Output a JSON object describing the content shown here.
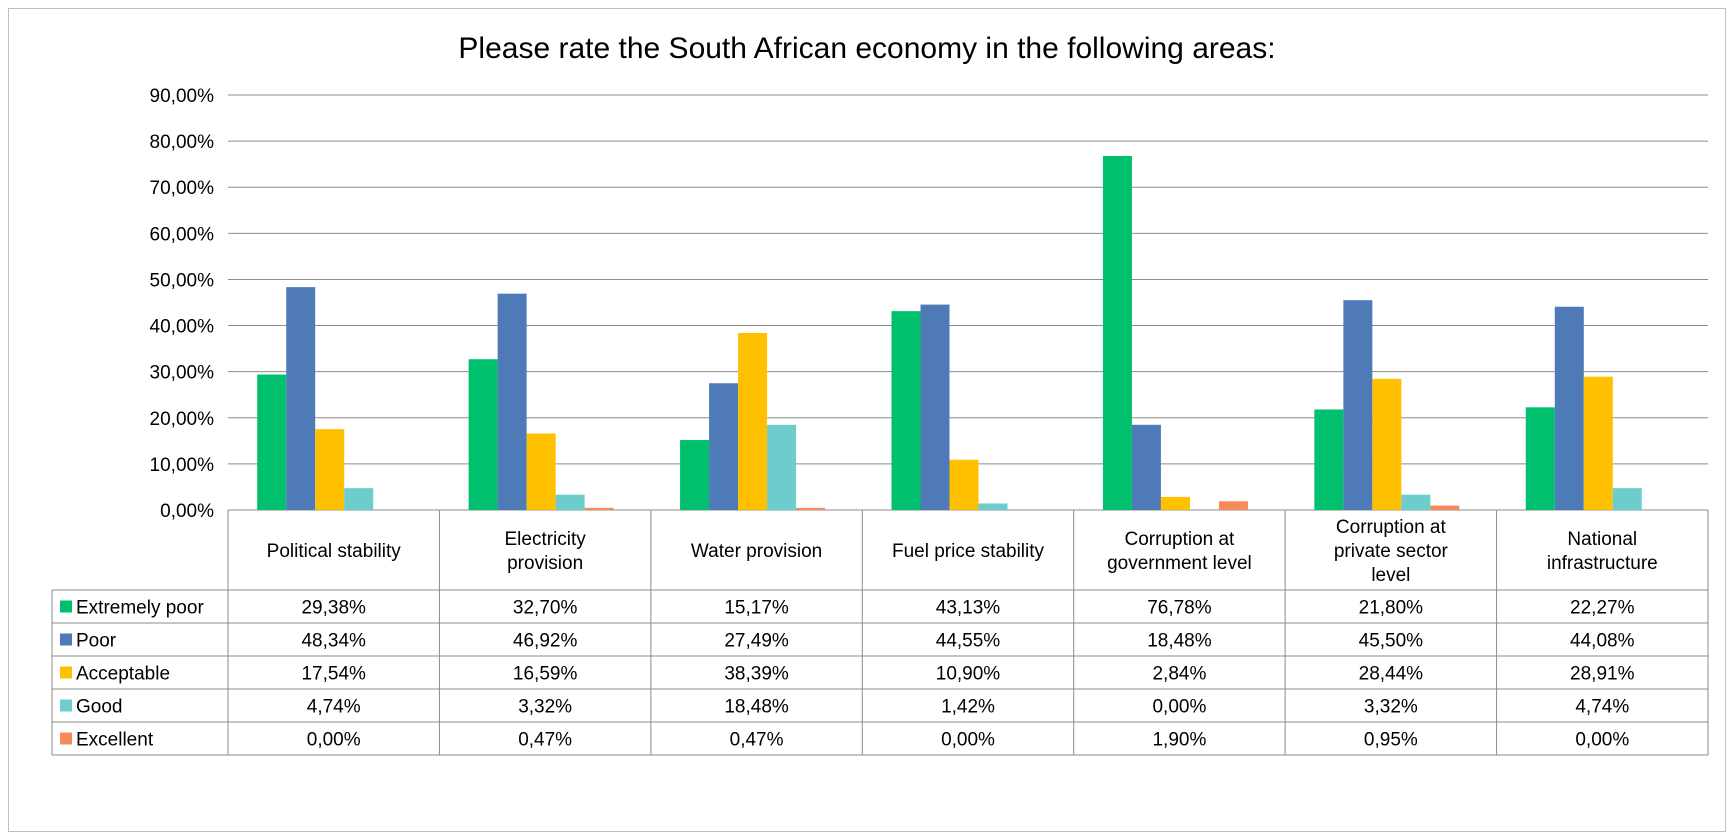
{
  "chart_data": {
    "type": "bar",
    "title": "Please rate the South African economy in the following areas:",
    "categories": [
      [
        "Political stability"
      ],
      [
        "Electricity",
        "provision"
      ],
      [
        "Water provision"
      ],
      [
        "Fuel price stability"
      ],
      [
        "Corruption at",
        "government level"
      ],
      [
        "Corruption at",
        "private sector",
        "level"
      ],
      [
        "National",
        "infrastructure"
      ]
    ],
    "ylim": [
      0,
      90
    ],
    "yticks": [
      0,
      10,
      20,
      30,
      40,
      50,
      60,
      70,
      80,
      90
    ],
    "ytick_labels": [
      "0,00%",
      "10,00%",
      "20,00%",
      "30,00%",
      "40,00%",
      "50,00%",
      "60,00%",
      "70,00%",
      "80,00%",
      "90,00%"
    ],
    "grid": true,
    "legend_placement": "data table rows",
    "series": [
      {
        "name": "Extremely poor",
        "color": "#00c06e",
        "values": [
          29.38,
          32.7,
          15.17,
          43.13,
          76.78,
          21.8,
          22.27
        ],
        "labels": [
          "29,38%",
          "32,70%",
          "15,17%",
          "43,13%",
          "76,78%",
          "21,80%",
          "22,27%"
        ]
      },
      {
        "name": "Poor",
        "color": "#4f7ab8",
        "values": [
          48.34,
          46.92,
          27.49,
          44.55,
          18.48,
          45.5,
          44.08
        ],
        "labels": [
          "48,34%",
          "46,92%",
          "27,49%",
          "44,55%",
          "18,48%",
          "45,50%",
          "44,08%"
        ]
      },
      {
        "name": "Acceptable",
        "color": "#ffc000",
        "values": [
          17.54,
          16.59,
          38.39,
          10.9,
          2.84,
          28.44,
          28.91
        ],
        "labels": [
          "17,54%",
          "16,59%",
          "38,39%",
          "10,90%",
          "2,84%",
          "28,44%",
          "28,91%"
        ]
      },
      {
        "name": "Good",
        "color": "#6dcccc",
        "values": [
          4.74,
          3.32,
          18.48,
          1.42,
          0.0,
          3.32,
          4.74
        ],
        "labels": [
          "4,74%",
          "3,32%",
          "18,48%",
          "1,42%",
          "0,00%",
          "3,32%",
          "4,74%"
        ]
      },
      {
        "name": "Excellent",
        "color": "#f58b5b",
        "values": [
          0.0,
          0.47,
          0.47,
          0.0,
          1.9,
          0.95,
          0.0
        ],
        "labels": [
          "0,00%",
          "0,47%",
          "0,47%",
          "0,00%",
          "1,90%",
          "0,95%",
          "0,00%"
        ]
      }
    ]
  }
}
